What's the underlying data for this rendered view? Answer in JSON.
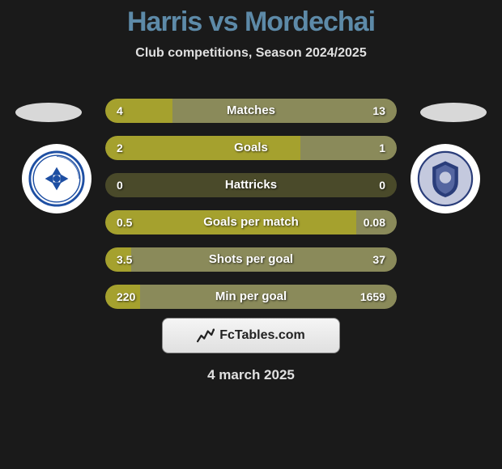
{
  "title": "Harris vs Mordechai",
  "subtitle": "Club competitions, Season 2024/2025",
  "title_color": "#5d8aa8",
  "subtitle_color": "#e0e0e0",
  "date": "4 march 2025",
  "logo_text": "FcTables.com",
  "colors": {
    "bar_left": "#a5a12e",
    "bar_right": "#8a8a5a",
    "track": "#4a4a2a",
    "bg": "#1a1a1a"
  },
  "badges": {
    "left": {
      "name": "maccabi-petach-tikva",
      "primary": "#1e4fa3",
      "secondary": "#ffffff"
    },
    "right": {
      "name": "ironi-kiryat-shmona",
      "primary": "#2a3d7a",
      "secondary": "#c4c9de"
    }
  },
  "rows": [
    {
      "label": "Matches",
      "left": "4",
      "right": "13",
      "left_pct": 23,
      "right_pct": 77
    },
    {
      "label": "Goals",
      "left": "2",
      "right": "1",
      "left_pct": 67,
      "right_pct": 33
    },
    {
      "label": "Hattricks",
      "left": "0",
      "right": "0",
      "left_pct": 0,
      "right_pct": 0
    },
    {
      "label": "Goals per match",
      "left": "0.5",
      "right": "0.08",
      "left_pct": 86,
      "right_pct": 14
    },
    {
      "label": "Shots per goal",
      "left": "3.5",
      "right": "37",
      "left_pct": 9,
      "right_pct": 91
    },
    {
      "label": "Min per goal",
      "left": "220",
      "right": "1659",
      "left_pct": 12,
      "right_pct": 88
    }
  ]
}
